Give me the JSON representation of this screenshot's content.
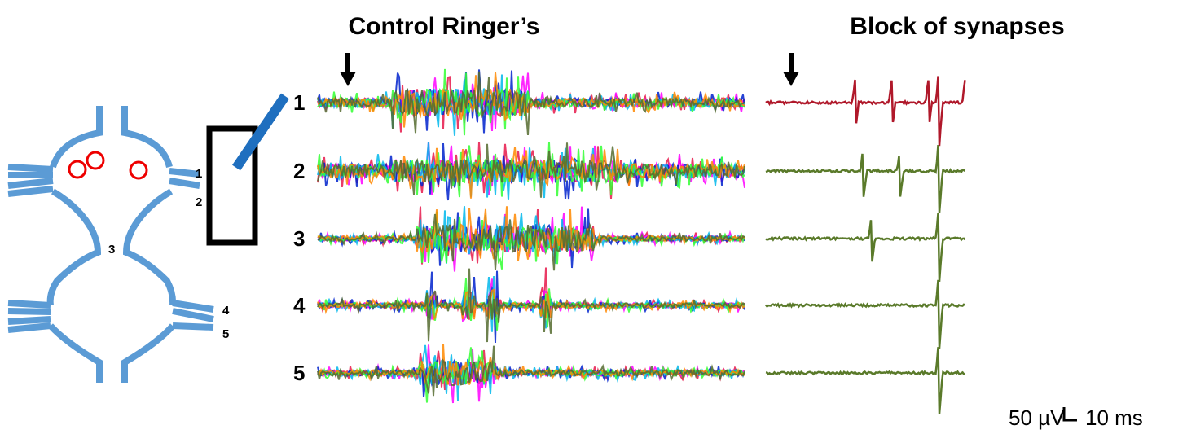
{
  "panels": [
    {
      "title": "Control Ringer’s"
    },
    {
      "title": "Block of synapses"
    }
  ],
  "trace_labels": [
    "1",
    "2",
    "3",
    "4",
    "5"
  ],
  "diagram": {
    "nerve_labels": [
      "1",
      "2",
      "3",
      "4",
      "5"
    ]
  },
  "scale_bar": {
    "voltage": "50 µV",
    "time": "10 ms"
  }
}
